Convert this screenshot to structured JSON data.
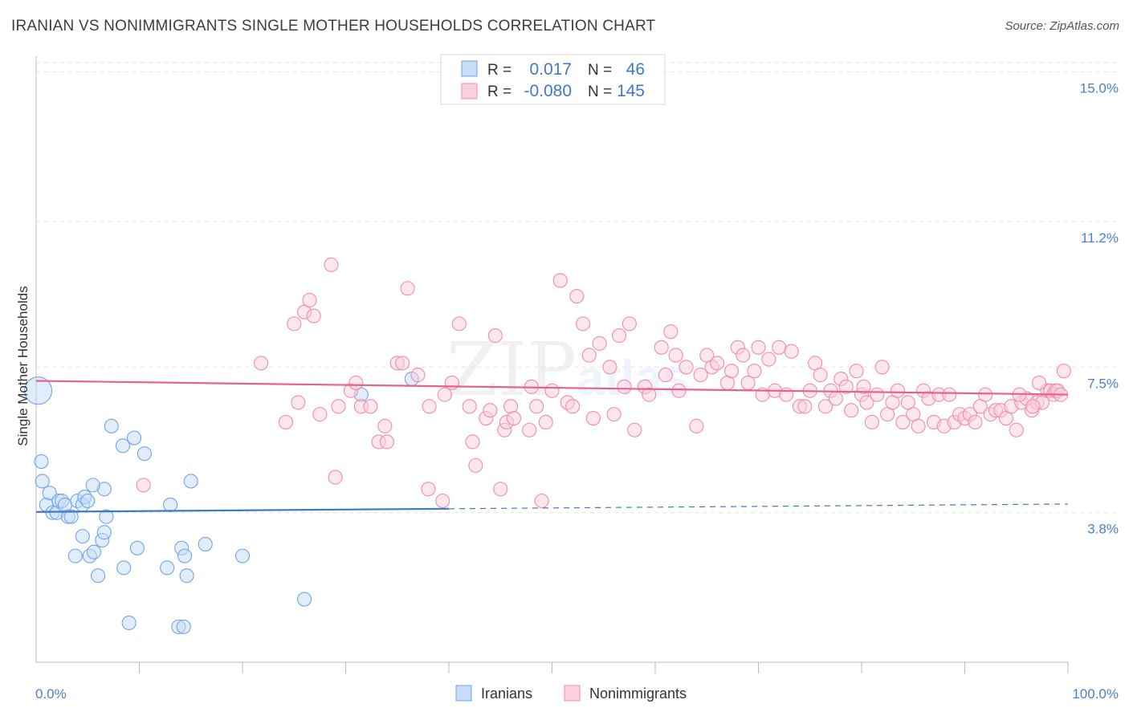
{
  "header": {
    "title": "IRANIAN VS NONIMMIGRANTS SINGLE MOTHER HOUSEHOLDS CORRELATION CHART",
    "source": "Source: ZipAtlas.com"
  },
  "watermark": {
    "zip": "ZIP",
    "atlas": "atlas"
  },
  "stats": [
    {
      "r_label": "R =",
      "r_value": "0.017",
      "n_label": "N =",
      "n_value": "46"
    },
    {
      "r_label": "R =",
      "r_value": "-0.080",
      "n_label": "N =",
      "n_value": "145"
    }
  ],
  "chart_data": {
    "type": "scatter",
    "title": "IRANIAN VS NONIMMIGRANTS SINGLE MOTHER HOUSEHOLDS CORRELATION CHART",
    "xlabel": "",
    "ylabel": "Single Mother Households",
    "xlim": [
      0,
      100
    ],
    "ylim": [
      0,
      15.4
    ],
    "x_tick_labels": [
      {
        "value": 0,
        "label": "0.0%"
      },
      {
        "value": 100,
        "label": "100.0%"
      }
    ],
    "y_ticks": [
      {
        "value": 3.8,
        "label": "3.8%"
      },
      {
        "value": 7.5,
        "label": "7.5%"
      },
      {
        "value": 11.2,
        "label": "11.2%"
      },
      {
        "value": 15.0,
        "label": "15.0%"
      }
    ],
    "grid": true,
    "legend_position": "bottom-center",
    "colors": {
      "iranians": "#6fa4e8",
      "iranians_line": "#3f78c9",
      "nonimmigrants": "#f08cab",
      "nonimmigrants_line": "#e86090",
      "tick_text": "#4a7fd0"
    },
    "series": [
      {
        "name": "Iranians",
        "trend": {
          "x0": 0,
          "y0": 3.82,
          "x1": 100,
          "y1": 4.02,
          "solid_until": 40
        },
        "points": [
          [
            0.2,
            6.9,
            "big"
          ],
          [
            0.5,
            5.1
          ],
          [
            0.6,
            4.6
          ],
          [
            1.0,
            4.0
          ],
          [
            1.3,
            4.3
          ],
          [
            1.6,
            3.8
          ],
          [
            2.0,
            3.8
          ],
          [
            2.2,
            4.1
          ],
          [
            2.5,
            4.1
          ],
          [
            2.8,
            4.0
          ],
          [
            3.1,
            3.7
          ],
          [
            3.4,
            3.7
          ],
          [
            4.0,
            4.1
          ],
          [
            4.5,
            4.0
          ],
          [
            4.7,
            4.2
          ],
          [
            5.0,
            4.1
          ],
          [
            3.8,
            2.7
          ],
          [
            4.5,
            3.2
          ],
          [
            5.2,
            2.7
          ],
          [
            5.6,
            2.8
          ],
          [
            6.4,
            3.1
          ],
          [
            6.6,
            3.3
          ],
          [
            6.8,
            3.7
          ],
          [
            6.6,
            4.4
          ],
          [
            5.5,
            4.5
          ],
          [
            7.3,
            6.0
          ],
          [
            8.4,
            5.5
          ],
          [
            9.5,
            5.7
          ],
          [
            10.5,
            5.3
          ],
          [
            8.5,
            2.4
          ],
          [
            9.8,
            2.9
          ],
          [
            12.7,
            2.4
          ],
          [
            13.0,
            4.0
          ],
          [
            14.1,
            2.9
          ],
          [
            14.4,
            2.7
          ],
          [
            14.6,
            2.2
          ],
          [
            15.0,
            4.6
          ],
          [
            16.4,
            3.0
          ],
          [
            20.0,
            2.7
          ],
          [
            6.0,
            2.2
          ],
          [
            9.0,
            1.0
          ],
          [
            13.8,
            0.9
          ],
          [
            14.3,
            0.9
          ],
          [
            26.0,
            1.6
          ],
          [
            31.5,
            6.8
          ],
          [
            36.4,
            7.2
          ]
        ]
      },
      {
        "name": "Nonimmigrants",
        "trend": {
          "x0": 0,
          "y0": 7.15,
          "x1": 100,
          "y1": 6.8
        },
        "points": [
          [
            10.4,
            4.5
          ],
          [
            21.8,
            7.6
          ],
          [
            24.2,
            6.1
          ],
          [
            25.0,
            8.6
          ],
          [
            25.4,
            6.6
          ],
          [
            26.0,
            8.9
          ],
          [
            26.5,
            9.2
          ],
          [
            26.9,
            8.8
          ],
          [
            27.5,
            6.3
          ],
          [
            28.6,
            10.1
          ],
          [
            29.0,
            4.7
          ],
          [
            29.3,
            6.5
          ],
          [
            30.5,
            6.9
          ],
          [
            31.0,
            7.1
          ],
          [
            31.5,
            6.5
          ],
          [
            32.4,
            6.5
          ],
          [
            33.2,
            5.6
          ],
          [
            33.8,
            6.0
          ],
          [
            34.0,
            5.6
          ],
          [
            35.0,
            7.6
          ],
          [
            35.5,
            7.6
          ],
          [
            36.0,
            9.5
          ],
          [
            37.0,
            7.3
          ],
          [
            38.0,
            4.4
          ],
          [
            38.1,
            6.5
          ],
          [
            39.4,
            4.1
          ],
          [
            39.6,
            6.8
          ],
          [
            40.3,
            7.1
          ],
          [
            41.0,
            8.6
          ],
          [
            42.0,
            6.5
          ],
          [
            42.3,
            5.6
          ],
          [
            42.6,
            5.0
          ],
          [
            43.6,
            6.2
          ],
          [
            44.0,
            6.4
          ],
          [
            44.5,
            8.3
          ],
          [
            45.0,
            4.4
          ],
          [
            45.4,
            5.9
          ],
          [
            45.6,
            6.1
          ],
          [
            46.0,
            6.5
          ],
          [
            46.3,
            6.2
          ],
          [
            47.8,
            5.9
          ],
          [
            48.0,
            7.0
          ],
          [
            48.5,
            6.5
          ],
          [
            49.0,
            4.1
          ],
          [
            49.4,
            6.1
          ],
          [
            50.0,
            6.9
          ],
          [
            50.8,
            9.7
          ],
          [
            51.5,
            6.6
          ],
          [
            52.0,
            6.5
          ],
          [
            52.4,
            9.3
          ],
          [
            53.0,
            8.6
          ],
          [
            53.6,
            7.8
          ],
          [
            54.0,
            6.2
          ],
          [
            54.6,
            8.1
          ],
          [
            55.6,
            7.5
          ],
          [
            56.0,
            6.3
          ],
          [
            56.5,
            8.3
          ],
          [
            57.0,
            7.0
          ],
          [
            57.5,
            8.6
          ],
          [
            58.0,
            5.9
          ],
          [
            59.0,
            7.0
          ],
          [
            59.4,
            6.8
          ],
          [
            60.6,
            8.0
          ],
          [
            61.0,
            7.3
          ],
          [
            61.5,
            8.4
          ],
          [
            62.0,
            7.8
          ],
          [
            62.3,
            6.9
          ],
          [
            63.0,
            7.5
          ],
          [
            64.0,
            6.0
          ],
          [
            64.4,
            7.3
          ],
          [
            65.0,
            7.8
          ],
          [
            65.5,
            7.5
          ],
          [
            66.0,
            7.6
          ],
          [
            67.0,
            7.1
          ],
          [
            67.4,
            7.4
          ],
          [
            68.0,
            8.0
          ],
          [
            68.5,
            7.8
          ],
          [
            69.0,
            7.1
          ],
          [
            69.6,
            7.4
          ],
          [
            70.0,
            8.0
          ],
          [
            70.4,
            6.8
          ],
          [
            71.0,
            7.7
          ],
          [
            71.6,
            6.9
          ],
          [
            72.0,
            8.0
          ],
          [
            72.7,
            6.8
          ],
          [
            73.2,
            7.9
          ],
          [
            74.0,
            6.5
          ],
          [
            74.5,
            6.5
          ],
          [
            75.0,
            6.9
          ],
          [
            75.5,
            7.6
          ],
          [
            76.0,
            7.3
          ],
          [
            76.5,
            6.5
          ],
          [
            77.0,
            6.9
          ],
          [
            77.5,
            6.7
          ],
          [
            78.0,
            7.2
          ],
          [
            78.5,
            7.0
          ],
          [
            79.0,
            6.4
          ],
          [
            79.5,
            7.4
          ],
          [
            80.0,
            6.8
          ],
          [
            80.5,
            6.6
          ],
          [
            81.0,
            6.1
          ],
          [
            81.5,
            6.8
          ],
          [
            82.0,
            7.5
          ],
          [
            82.5,
            6.3
          ],
          [
            83.0,
            6.6
          ],
          [
            83.5,
            6.9
          ],
          [
            84.0,
            6.1
          ],
          [
            84.5,
            6.6
          ],
          [
            85.0,
            6.3
          ],
          [
            85.5,
            6.0
          ],
          [
            86.0,
            6.9
          ],
          [
            86.5,
            6.7
          ],
          [
            87.0,
            6.1
          ],
          [
            87.5,
            6.8
          ],
          [
            88.0,
            6.0
          ],
          [
            88.5,
            6.8
          ],
          [
            89.0,
            6.1
          ],
          [
            89.5,
            6.3
          ],
          [
            90.0,
            6.2
          ],
          [
            90.5,
            6.3
          ],
          [
            91.0,
            6.1
          ],
          [
            91.5,
            6.5
          ],
          [
            92.0,
            6.8
          ],
          [
            92.5,
            6.3
          ],
          [
            93.0,
            6.4
          ],
          [
            93.5,
            6.4
          ],
          [
            94.0,
            6.2
          ],
          [
            94.5,
            6.5
          ],
          [
            95.0,
            5.9
          ],
          [
            95.5,
            6.6
          ],
          [
            96.0,
            6.7
          ],
          [
            96.5,
            6.4
          ],
          [
            97.0,
            6.6
          ],
          [
            97.5,
            6.6
          ],
          [
            98.0,
            6.9
          ],
          [
            98.3,
            6.9
          ],
          [
            98.6,
            6.8
          ],
          [
            98.8,
            6.9
          ],
          [
            99.0,
            6.9
          ],
          [
            99.3,
            6.8
          ],
          [
            99.6,
            7.4
          ],
          [
            96.6,
            6.5
          ],
          [
            95.3,
            6.8
          ],
          [
            97.2,
            7.1
          ],
          [
            80.2,
            7.0
          ]
        ]
      }
    ]
  }
}
